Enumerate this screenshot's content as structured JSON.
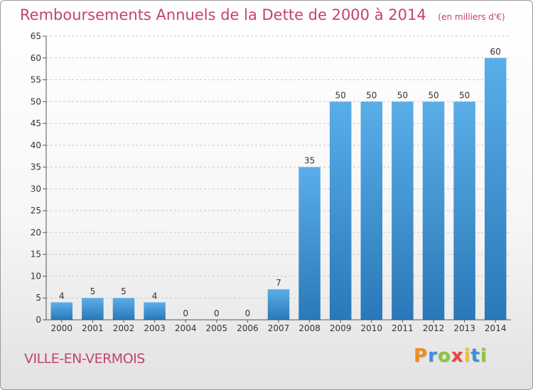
{
  "title": "Remboursements Annuels de la Dette de 2000 à 2014",
  "title_unit": "(en milliers d'€)",
  "commune": "VILLE-EN-VERMOIS",
  "logo_letters": [
    "P",
    "r",
    "o",
    "x",
    "i",
    "t",
    "i"
  ],
  "colors": {
    "title": "#c4426f",
    "bar_top": "#5aaee8",
    "bar_bottom": "#2a78b8"
  },
  "chart_data": {
    "type": "bar",
    "title": "Remboursements Annuels de la Dette de 2000 à 2014",
    "xlabel": "",
    "ylabel": "",
    "ylim": [
      0,
      65
    ],
    "yticks": [
      0,
      5,
      10,
      15,
      20,
      25,
      30,
      35,
      40,
      45,
      50,
      55,
      60,
      65
    ],
    "grid": true,
    "categories": [
      "2000",
      "2001",
      "2002",
      "2003",
      "2004",
      "2005",
      "2006",
      "2007",
      "2008",
      "2009",
      "2010",
      "2011",
      "2012",
      "2013",
      "2014"
    ],
    "values": [
      4,
      5,
      5,
      4,
      0,
      0,
      0,
      7,
      35,
      50,
      50,
      50,
      50,
      50,
      60
    ]
  }
}
